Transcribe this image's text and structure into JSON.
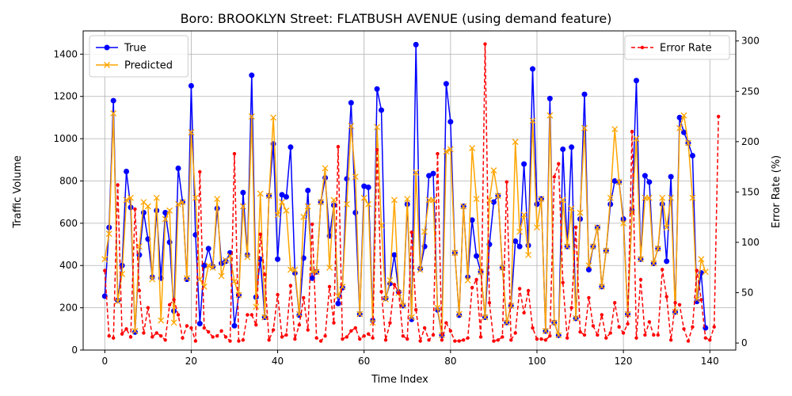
{
  "chart_data": {
    "type": "line",
    "title": "Boro: BROOKLYN Street: FLATBUSH AVENUE (using demand feature)",
    "xlabel": "Time Index",
    "ylabel": "Traffic Volume",
    "y2label": "Error Rate (%)",
    "xlim": [
      -5,
      146
    ],
    "ylim": [
      0,
      1510
    ],
    "y2lim": [
      -7,
      310
    ],
    "xticks": [
      0,
      20,
      40,
      60,
      80,
      100,
      120,
      140
    ],
    "yticks": [
      0,
      200,
      400,
      600,
      800,
      1000,
      1200,
      1400
    ],
    "y2ticks": [
      0,
      50,
      100,
      150,
      200,
      250,
      300
    ],
    "grid": true,
    "legend_left": "top-left",
    "legend_right": "top-right",
    "series": [
      {
        "name": "True",
        "color": "#0000ff",
        "marker": "circle",
        "axis": "left",
        "values": [
          255,
          580,
          1180,
          235,
          400,
          845,
          675,
          85,
          450,
          650,
          525,
          345,
          660,
          340,
          650,
          510,
          185,
          860,
          700,
          335,
          1250,
          545,
          125,
          400,
          480,
          395,
          670,
          410,
          420,
          460,
          115,
          260,
          745,
          450,
          1300,
          250,
          430,
          155,
          730,
          975,
          430,
          735,
          725,
          960,
          365,
          165,
          435,
          755,
          340,
          370,
          700,
          815,
          540,
          685,
          220,
          295,
          810,
          1170,
          650,
          170,
          775,
          770,
          140,
          1235,
          1135,
          245,
          315,
          450,
          275,
          210,
          690,
          145,
          1445,
          385,
          490,
          825,
          835,
          190,
          70,
          1260,
          1080,
          460,
          165,
          680,
          345,
          615,
          445,
          370,
          155,
          500,
          700,
          730,
          390,
          130,
          210,
          515,
          490,
          880,
          495,
          1330,
          690,
          715,
          90,
          1190,
          130,
          70,
          950,
          490,
          960,
          150,
          620,
          1210,
          380,
          490,
          580,
          300,
          470,
          690,
          800,
          795,
          620,
          170,
          660,
          1275,
          430,
          825,
          795,
          410,
          480,
          690,
          420,
          820,
          180,
          1100,
          1030,
          980,
          920,
          230,
          365,
          105
        ]
      },
      {
        "name": "Predicted",
        "color": "#ffa500",
        "marker": "x",
        "axis": "left",
        "values": [
          430,
          550,
          1120,
          230,
          360,
          710,
          720,
          90,
          490,
          700,
          680,
          335,
          720,
          140,
          620,
          660,
          130,
          690,
          700,
          340,
          1030,
          720,
          335,
          300,
          400,
          390,
          715,
          350,
          425,
          445,
          325,
          260,
          680,
          440,
          1105,
          205,
          740,
          155,
          730,
          1100,
          640,
          700,
          660,
          380,
          380,
          170,
          630,
          680,
          370,
          370,
          700,
          860,
          390,
          710,
          255,
          300,
          690,
          1060,
          820,
          170,
          720,
          690,
          130,
          1055,
          590,
          240,
          330,
          710,
          270,
          210,
          715,
          155,
          840,
          380,
          560,
          710,
          710,
          200,
          70,
          940,
          950,
          460,
          170,
          680,
          330,
          955,
          715,
          370,
          155,
          710,
          850,
          730,
          390,
          130,
          210,
          985,
          560,
          640,
          450,
          1085,
          580,
          715,
          90,
          1110,
          130,
          70,
          710,
          490,
          670,
          150,
          650,
          1050,
          400,
          490,
          580,
          300,
          470,
          720,
          1045,
          795,
          600,
          170,
          650,
          1000,
          430,
          720,
          720,
          410,
          480,
          720,
          580,
          720,
          180,
          1050,
          1110,
          980,
          720,
          240,
          430,
          370
        ]
      },
      {
        "name": "Error Rate",
        "color": "#ff0000",
        "marker": "dot",
        "axis": "right",
        "values": [
          72,
          7,
          5,
          157,
          9,
          14,
          6,
          133,
          52,
          10,
          35,
          6,
          10,
          7,
          3,
          38,
          43,
          28,
          5,
          17,
          15,
          2,
          170,
          15,
          11,
          6,
          7,
          12,
          6,
          2,
          188,
          2,
          3,
          28,
          28,
          18,
          108,
          68,
          3,
          13,
          48,
          6,
          8,
          57,
          4,
          18,
          45,
          13,
          118,
          5,
          2,
          7,
          56,
          20,
          195,
          4,
          6,
          12,
          15,
          4,
          7,
          9,
          5,
          192,
          51,
          3,
          20,
          58,
          50,
          7,
          4,
          110,
          33,
          2,
          15,
          3,
          8,
          188,
          3,
          20,
          12,
          2,
          2,
          3,
          5,
          55,
          63,
          6,
          297,
          40,
          2,
          3,
          6,
          160,
          3,
          10,
          54,
          30,
          52,
          15,
          4,
          4,
          3,
          7,
          165,
          178,
          60,
          5,
          35,
          115,
          11,
          8,
          45,
          17,
          8,
          28,
          5,
          10,
          40,
          16,
          10,
          19,
          210,
          5,
          63,
          8,
          21,
          8,
          8,
          73,
          46,
          3,
          40,
          38,
          14,
          2,
          16,
          72,
          43,
          5,
          3,
          16,
          225
        ]
      }
    ]
  }
}
